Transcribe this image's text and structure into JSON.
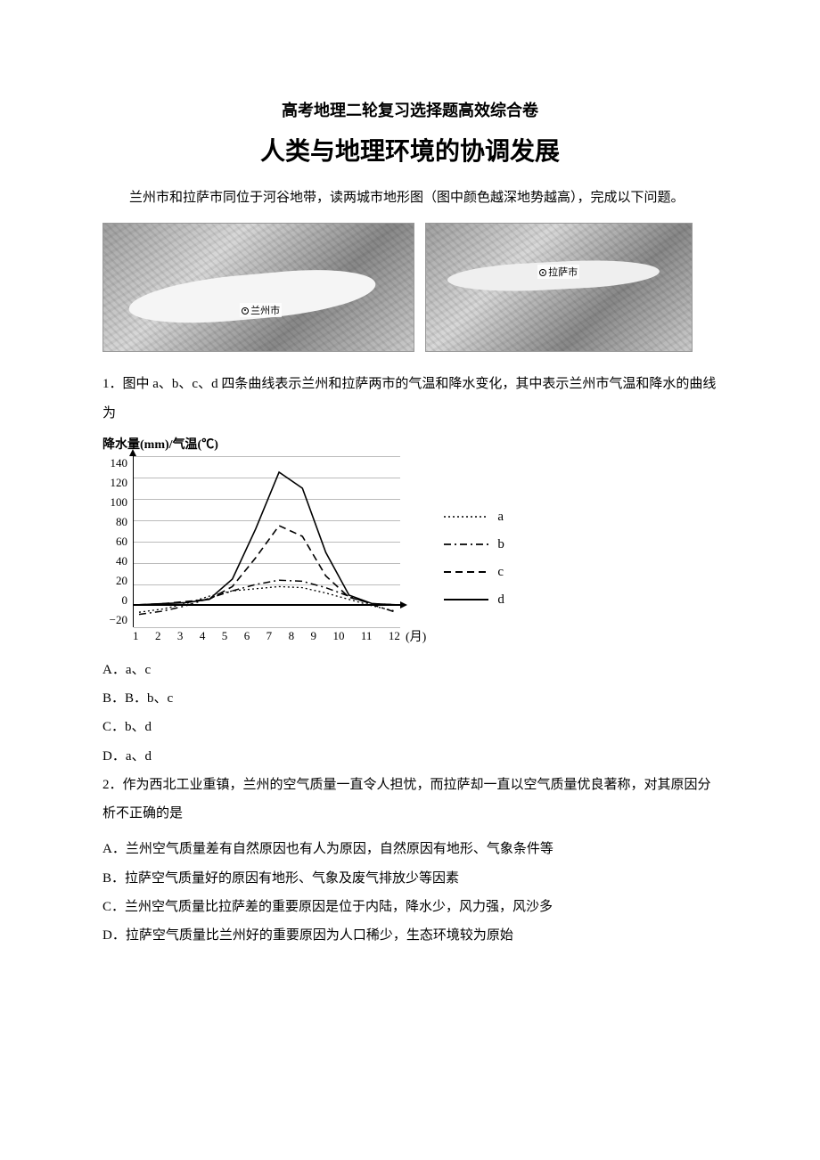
{
  "titles": {
    "line1": "高考地理二轮复习选择题高效综合卷",
    "line2": "人类与地理环境的协调发展"
  },
  "intro": "兰州市和拉萨市同位于河谷地带，读两城市地形图（图中颜色越深地势越高），完成以下问题。",
  "maps": {
    "city1": "兰州市",
    "city2": "拉萨市"
  },
  "q1": {
    "stem": "1．图中 a、b、c、d 四条曲线表示兰州和拉萨两市的气温和降水变化，其中表示兰州市气温和降水的曲线为",
    "options": {
      "A": "A．a、c",
      "B": "B．B．b、c",
      "C": "C．b、d",
      "D": "D．a、d"
    }
  },
  "chart": {
    "y_title": "降水量(mm)/气温(℃)",
    "x_title": "(月)",
    "y_ticks": [
      "140",
      "120",
      "100",
      "80",
      "60",
      "40",
      "20",
      "0",
      "−20"
    ],
    "x_ticks": [
      "1",
      "2",
      "3",
      "4",
      "5",
      "6",
      "7",
      "8",
      "9",
      "10",
      "11",
      "12"
    ],
    "curves": {
      "a": {
        "label": "a",
        "dash": "2,3",
        "color": "#000000",
        "width": 1.3
      },
      "b": {
        "label": "b",
        "dash": "8,4,2,4",
        "color": "#000000",
        "width": 1.5
      },
      "c": {
        "label": "c",
        "dash": "8,5",
        "color": "#000000",
        "width": 1.6
      },
      "d": {
        "label": "d",
        "dash": "0",
        "color": "#000000",
        "width": 1.6
      }
    },
    "grid_color": "#bbbbbb",
    "axis_color": "#000000",
    "background_color": "#ffffff",
    "ylim": [
      -20,
      140
    ],
    "ytick_step": 20,
    "series": {
      "a": [
        -6,
        -3,
        2,
        9,
        14,
        16,
        18,
        17,
        12,
        6,
        0,
        -5
      ],
      "b": [
        -8,
        -5,
        0,
        7,
        14,
        20,
        24,
        23,
        17,
        9,
        1,
        -6
      ],
      "c": [
        1,
        2,
        4,
        6,
        18,
        45,
        75,
        65,
        28,
        8,
        2,
        1
      ],
      "d": [
        1,
        2,
        3,
        6,
        25,
        72,
        125,
        110,
        50,
        10,
        2,
        1
      ]
    }
  },
  "q2": {
    "stem": "2．作为西北工业重镇，兰州的空气质量一直令人担忧，而拉萨却一直以空气质量优良著称，对其原因分析不正确的是",
    "options": {
      "A": "A．兰州空气质量差有自然原因也有人为原因，自然原因有地形、气象条件等",
      "B": "B．拉萨空气质量好的原因有地形、气象及废气排放少等因素",
      "C": "C．兰州空气质量比拉萨差的重要原因是位于内陆，降水少，风力强，风沙多",
      "D": "D．拉萨空气质量比兰州好的重要原因为人口稀少，生态环境较为原始"
    }
  }
}
